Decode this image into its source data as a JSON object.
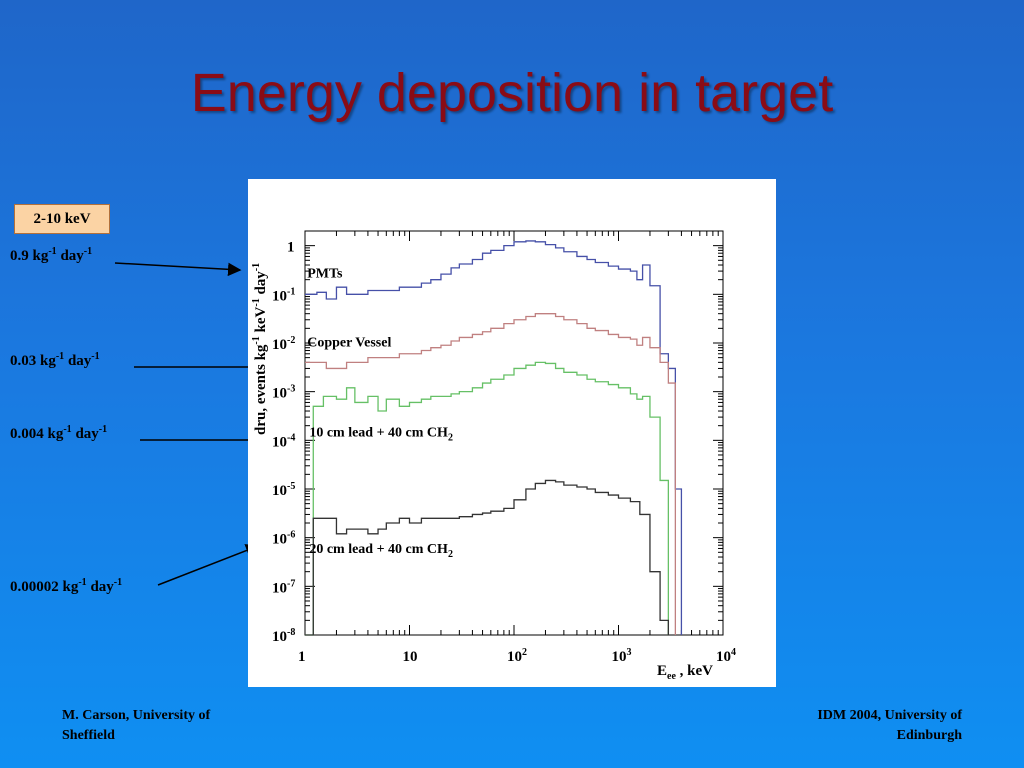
{
  "slide": {
    "title": "Energy deposition in target",
    "badge": "2-10 keV",
    "rates": [
      {
        "value": "0.9 kg",
        "exp1": "-1",
        "mid": " day",
        "exp2": "-1"
      },
      {
        "value": "0.03 kg",
        "exp1": "-1",
        "mid": " day",
        "exp2": "-1"
      },
      {
        "value": "0.004 kg",
        "exp1": "-1",
        "mid": " day",
        "exp2": "-1"
      },
      {
        "value": "0.00002 kg",
        "exp1": "-1",
        "mid": " day",
        "exp2": "-1"
      }
    ],
    "footer_left": [
      "M. Carson, University of",
      "Sheffield"
    ],
    "footer_right": [
      "IDM 2004, University of",
      "Edinburgh"
    ]
  },
  "chart_data": {
    "type": "line",
    "xscale": "log",
    "yscale": "log",
    "xlim": [
      1,
      10000
    ],
    "ylim": [
      1e-08,
      2
    ],
    "xlabel": "E_ee , keV",
    "ylabel": "dru, events kg^-1 keV^-1 day^-1",
    "x_ticks": [
      {
        "base": "1",
        "exp": ""
      },
      {
        "base": "10",
        "exp": ""
      },
      {
        "base": "10",
        "exp": "2"
      },
      {
        "base": "10",
        "exp": "3"
      },
      {
        "base": "10",
        "exp": "4"
      }
    ],
    "y_ticks": [
      {
        "base": "1",
        "exp": ""
      },
      {
        "base": "10",
        "exp": "-1"
      },
      {
        "base": "10",
        "exp": "-2"
      },
      {
        "base": "10",
        "exp": "-3"
      },
      {
        "base": "10",
        "exp": "-4"
      },
      {
        "base": "10",
        "exp": "-5"
      },
      {
        "base": "10",
        "exp": "-6"
      },
      {
        "base": "10",
        "exp": "-7"
      },
      {
        "base": "10",
        "exp": "-8"
      }
    ],
    "annotations": [
      {
        "text": "PMTs"
      },
      {
        "text": "Copper Vessel"
      },
      {
        "text": "10 cm lead + 40 cm CH",
        "sub": "2"
      },
      {
        "text": "20 cm lead + 40 cm CH",
        "sub": "2"
      }
    ],
    "series": [
      {
        "color": "#4650a8",
        "x": [
          1,
          1.3,
          1.6,
          2,
          2.5,
          3,
          4,
          5,
          6,
          8,
          10,
          13,
          16,
          20,
          25,
          30,
          40,
          50,
          60,
          80,
          100,
          130,
          160,
          200,
          250,
          300,
          400,
          500,
          600,
          800,
          1000,
          1300,
          1500,
          1700,
          2000,
          2500,
          3000,
          3500,
          4000
        ],
        "y": [
          0.1,
          0.11,
          0.08,
          0.14,
          0.1,
          0.1,
          0.12,
          0.12,
          0.12,
          0.14,
          0.14,
          0.17,
          0.2,
          0.26,
          0.35,
          0.42,
          0.52,
          0.7,
          0.8,
          1.0,
          1.2,
          1.25,
          1.2,
          1.05,
          0.9,
          0.75,
          0.6,
          0.52,
          0.45,
          0.38,
          0.33,
          0.3,
          0.2,
          0.4,
          0.15,
          0.006,
          0.003,
          1e-05,
          1e-08
        ]
      },
      {
        "color": "#c08080",
        "x": [
          1,
          1.3,
          1.6,
          2,
          2.5,
          3,
          4,
          5,
          6,
          8,
          10,
          13,
          16,
          20,
          25,
          30,
          40,
          50,
          60,
          80,
          100,
          130,
          160,
          200,
          250,
          300,
          400,
          500,
          600,
          800,
          1000,
          1300,
          1500,
          1700,
          2000,
          2500,
          3000,
          3500
        ],
        "y": [
          0.004,
          0.004,
          0.003,
          0.003,
          0.004,
          0.004,
          0.005,
          0.005,
          0.005,
          0.006,
          0.006,
          0.007,
          0.008,
          0.009,
          0.011,
          0.013,
          0.015,
          0.017,
          0.02,
          0.025,
          0.03,
          0.035,
          0.04,
          0.04,
          0.035,
          0.03,
          0.025,
          0.02,
          0.018,
          0.015,
          0.013,
          0.012,
          0.009,
          0.013,
          0.008,
          0.004,
          0.0015,
          1e-08
        ]
      },
      {
        "color": "#66c066",
        "x": [
          1,
          1.2,
          1.5,
          2,
          2.5,
          3,
          4,
          5,
          6,
          8,
          10,
          13,
          16,
          20,
          25,
          30,
          40,
          50,
          60,
          80,
          100,
          130,
          160,
          200,
          250,
          300,
          400,
          500,
          600,
          800,
          1000,
          1300,
          1500,
          1700,
          2000,
          2500,
          3000
        ],
        "y": [
          1e-08,
          0.0005,
          0.0008,
          0.0007,
          0.0012,
          0.0006,
          0.0008,
          0.0004,
          0.0007,
          0.0005,
          0.0006,
          0.0007,
          0.0008,
          0.0008,
          0.0009,
          0.001,
          0.0012,
          0.0015,
          0.0018,
          0.0022,
          0.003,
          0.0035,
          0.004,
          0.0038,
          0.003,
          0.0025,
          0.0022,
          0.0018,
          0.0016,
          0.0014,
          0.0012,
          0.0009,
          0.0007,
          0.0008,
          0.0003,
          1.5e-05,
          1e-08
        ]
      },
      {
        "color": "#333333",
        "x": [
          1,
          1.2,
          1.5,
          2,
          2.5,
          3,
          4,
          5,
          6,
          8,
          10,
          13,
          16,
          20,
          25,
          30,
          40,
          50,
          60,
          80,
          100,
          130,
          160,
          200,
          250,
          300,
          400,
          500,
          600,
          800,
          1000,
          1300,
          1600,
          2000,
          2500,
          3000
        ],
        "y": [
          1e-08,
          2.5e-06,
          2.5e-06,
          1.2e-06,
          1.5e-06,
          1.5e-06,
          1.2e-06,
          1.5e-06,
          2e-06,
          2.5e-06,
          2e-06,
          2.5e-06,
          2.5e-06,
          2.5e-06,
          2.5e-06,
          2.7e-06,
          3e-06,
          3.2e-06,
          3.5e-06,
          4e-06,
          6e-06,
          1e-05,
          1.3e-05,
          1.5e-05,
          1.4e-05,
          1.2e-05,
          1.1e-05,
          1e-05,
          8.5e-06,
          7.5e-06,
          6.5e-06,
          5.5e-06,
          3e-06,
          2e-07,
          2e-08,
          1e-08
        ]
      }
    ]
  }
}
